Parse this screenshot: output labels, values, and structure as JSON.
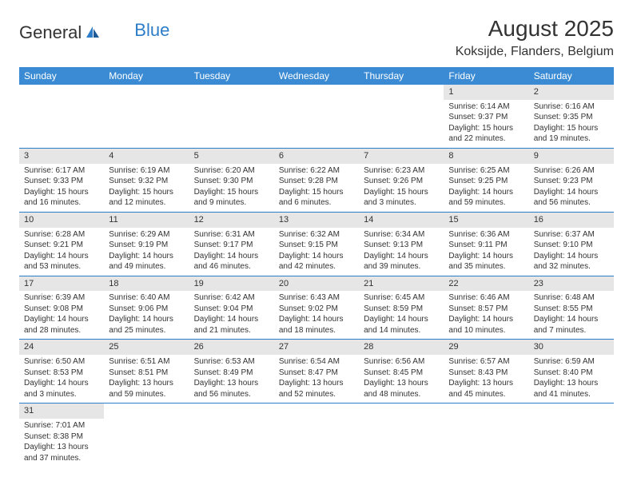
{
  "logo": {
    "general": "General",
    "blue": "Blue",
    "general_color": "#333333",
    "blue_color": "#2d7dc8"
  },
  "title": "August 2025",
  "location": "Koksijde, Flanders, Belgium",
  "header_bg": "#3b8bd4",
  "header_fg": "#ffffff",
  "daynum_bg": "#e6e6e6",
  "border_color": "#2d7dc8",
  "text_color": "#333333",
  "weekdays": [
    "Sunday",
    "Monday",
    "Tuesday",
    "Wednesday",
    "Thursday",
    "Friday",
    "Saturday"
  ],
  "weeks": [
    [
      null,
      null,
      null,
      null,
      null,
      {
        "n": "1",
        "sr": "Sunrise: 6:14 AM",
        "ss": "Sunset: 9:37 PM",
        "dl": "Daylight: 15 hours and 22 minutes."
      },
      {
        "n": "2",
        "sr": "Sunrise: 6:16 AM",
        "ss": "Sunset: 9:35 PM",
        "dl": "Daylight: 15 hours and 19 minutes."
      }
    ],
    [
      {
        "n": "3",
        "sr": "Sunrise: 6:17 AM",
        "ss": "Sunset: 9:33 PM",
        "dl": "Daylight: 15 hours and 16 minutes."
      },
      {
        "n": "4",
        "sr": "Sunrise: 6:19 AM",
        "ss": "Sunset: 9:32 PM",
        "dl": "Daylight: 15 hours and 12 minutes."
      },
      {
        "n": "5",
        "sr": "Sunrise: 6:20 AM",
        "ss": "Sunset: 9:30 PM",
        "dl": "Daylight: 15 hours and 9 minutes."
      },
      {
        "n": "6",
        "sr": "Sunrise: 6:22 AM",
        "ss": "Sunset: 9:28 PM",
        "dl": "Daylight: 15 hours and 6 minutes."
      },
      {
        "n": "7",
        "sr": "Sunrise: 6:23 AM",
        "ss": "Sunset: 9:26 PM",
        "dl": "Daylight: 15 hours and 3 minutes."
      },
      {
        "n": "8",
        "sr": "Sunrise: 6:25 AM",
        "ss": "Sunset: 9:25 PM",
        "dl": "Daylight: 14 hours and 59 minutes."
      },
      {
        "n": "9",
        "sr": "Sunrise: 6:26 AM",
        "ss": "Sunset: 9:23 PM",
        "dl": "Daylight: 14 hours and 56 minutes."
      }
    ],
    [
      {
        "n": "10",
        "sr": "Sunrise: 6:28 AM",
        "ss": "Sunset: 9:21 PM",
        "dl": "Daylight: 14 hours and 53 minutes."
      },
      {
        "n": "11",
        "sr": "Sunrise: 6:29 AM",
        "ss": "Sunset: 9:19 PM",
        "dl": "Daylight: 14 hours and 49 minutes."
      },
      {
        "n": "12",
        "sr": "Sunrise: 6:31 AM",
        "ss": "Sunset: 9:17 PM",
        "dl": "Daylight: 14 hours and 46 minutes."
      },
      {
        "n": "13",
        "sr": "Sunrise: 6:32 AM",
        "ss": "Sunset: 9:15 PM",
        "dl": "Daylight: 14 hours and 42 minutes."
      },
      {
        "n": "14",
        "sr": "Sunrise: 6:34 AM",
        "ss": "Sunset: 9:13 PM",
        "dl": "Daylight: 14 hours and 39 minutes."
      },
      {
        "n": "15",
        "sr": "Sunrise: 6:36 AM",
        "ss": "Sunset: 9:11 PM",
        "dl": "Daylight: 14 hours and 35 minutes."
      },
      {
        "n": "16",
        "sr": "Sunrise: 6:37 AM",
        "ss": "Sunset: 9:10 PM",
        "dl": "Daylight: 14 hours and 32 minutes."
      }
    ],
    [
      {
        "n": "17",
        "sr": "Sunrise: 6:39 AM",
        "ss": "Sunset: 9:08 PM",
        "dl": "Daylight: 14 hours and 28 minutes."
      },
      {
        "n": "18",
        "sr": "Sunrise: 6:40 AM",
        "ss": "Sunset: 9:06 PM",
        "dl": "Daylight: 14 hours and 25 minutes."
      },
      {
        "n": "19",
        "sr": "Sunrise: 6:42 AM",
        "ss": "Sunset: 9:04 PM",
        "dl": "Daylight: 14 hours and 21 minutes."
      },
      {
        "n": "20",
        "sr": "Sunrise: 6:43 AM",
        "ss": "Sunset: 9:02 PM",
        "dl": "Daylight: 14 hours and 18 minutes."
      },
      {
        "n": "21",
        "sr": "Sunrise: 6:45 AM",
        "ss": "Sunset: 8:59 PM",
        "dl": "Daylight: 14 hours and 14 minutes."
      },
      {
        "n": "22",
        "sr": "Sunrise: 6:46 AM",
        "ss": "Sunset: 8:57 PM",
        "dl": "Daylight: 14 hours and 10 minutes."
      },
      {
        "n": "23",
        "sr": "Sunrise: 6:48 AM",
        "ss": "Sunset: 8:55 PM",
        "dl": "Daylight: 14 hours and 7 minutes."
      }
    ],
    [
      {
        "n": "24",
        "sr": "Sunrise: 6:50 AM",
        "ss": "Sunset: 8:53 PM",
        "dl": "Daylight: 14 hours and 3 minutes."
      },
      {
        "n": "25",
        "sr": "Sunrise: 6:51 AM",
        "ss": "Sunset: 8:51 PM",
        "dl": "Daylight: 13 hours and 59 minutes."
      },
      {
        "n": "26",
        "sr": "Sunrise: 6:53 AM",
        "ss": "Sunset: 8:49 PM",
        "dl": "Daylight: 13 hours and 56 minutes."
      },
      {
        "n": "27",
        "sr": "Sunrise: 6:54 AM",
        "ss": "Sunset: 8:47 PM",
        "dl": "Daylight: 13 hours and 52 minutes."
      },
      {
        "n": "28",
        "sr": "Sunrise: 6:56 AM",
        "ss": "Sunset: 8:45 PM",
        "dl": "Daylight: 13 hours and 48 minutes."
      },
      {
        "n": "29",
        "sr": "Sunrise: 6:57 AM",
        "ss": "Sunset: 8:43 PM",
        "dl": "Daylight: 13 hours and 45 minutes."
      },
      {
        "n": "30",
        "sr": "Sunrise: 6:59 AM",
        "ss": "Sunset: 8:40 PM",
        "dl": "Daylight: 13 hours and 41 minutes."
      }
    ],
    [
      {
        "n": "31",
        "sr": "Sunrise: 7:01 AM",
        "ss": "Sunset: 8:38 PM",
        "dl": "Daylight: 13 hours and 37 minutes."
      },
      null,
      null,
      null,
      null,
      null,
      null
    ]
  ]
}
